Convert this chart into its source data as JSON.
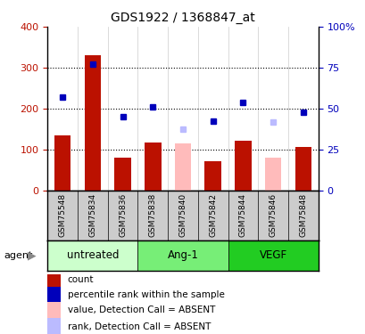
{
  "title": "GDS1922 / 1368847_at",
  "categories": [
    "GSM75548",
    "GSM75834",
    "GSM75836",
    "GSM75838",
    "GSM75840",
    "GSM75842",
    "GSM75844",
    "GSM75846",
    "GSM75848"
  ],
  "bar_values": [
    135,
    330,
    80,
    117,
    null,
    72,
    122,
    null,
    107
  ],
  "bar_absent_values": [
    null,
    null,
    null,
    null,
    115,
    null,
    null,
    80,
    null
  ],
  "rank_values": [
    228,
    308,
    181,
    204,
    null,
    170,
    216,
    null,
    192
  ],
  "rank_absent_values": [
    null,
    null,
    null,
    null,
    150,
    null,
    null,
    168,
    null
  ],
  "ylim_left": [
    0,
    400
  ],
  "ylim_right": [
    0,
    100
  ],
  "yticks_left": [
    0,
    100,
    200,
    300,
    400
  ],
  "yticks_right": [
    0,
    25,
    50,
    75,
    100
  ],
  "ytick_labels_right": [
    "0",
    "25",
    "50",
    "75",
    "100%"
  ],
  "groups": [
    {
      "label": "untreated",
      "indices": [
        0,
        1,
        2
      ],
      "color_light": "#ccffcc",
      "color_dark": "#ccffcc"
    },
    {
      "label": "Ang-1",
      "indices": [
        3,
        4,
        5
      ],
      "color_light": "#88ee88",
      "color_dark": "#88ee88"
    },
    {
      "label": "VEGF",
      "indices": [
        6,
        7,
        8
      ],
      "color_light": "#33cc33",
      "color_dark": "#33cc33"
    }
  ],
  "bar_color": "#bb1100",
  "bar_absent_color": "#ffbbbb",
  "rank_color": "#0000bb",
  "rank_absent_color": "#bbbbff",
  "bg_color": "#ffffff",
  "sample_bg_color": "#cccccc",
  "agent_label": "agent",
  "legend_items": [
    {
      "label": "count",
      "color": "#bb1100"
    },
    {
      "label": "percentile rank within the sample",
      "color": "#0000bb"
    },
    {
      "label": "value, Detection Call = ABSENT",
      "color": "#ffbbbb"
    },
    {
      "label": "rank, Detection Call = ABSENT",
      "color": "#bbbbff"
    }
  ]
}
